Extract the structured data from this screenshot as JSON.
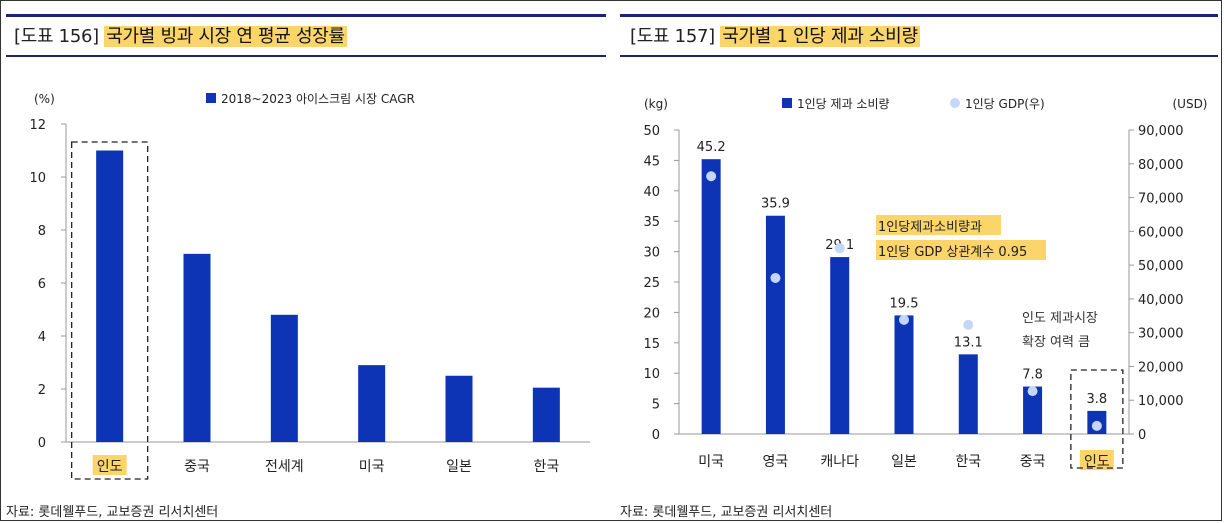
{
  "left_panel": {
    "fig_num": "[도표 156]",
    "fig_title": "국가별 빙과 시장 연 평균 성장률",
    "source": "자료: 롯데웰푸드, 교보증권 리서치센터"
  },
  "right_panel": {
    "fig_num": "[도표 157]",
    "fig_title": "국가별 1 인당 제과 소비량",
    "source": "자료: 롯데웰푸드, 교보증권 리서치센터"
  },
  "chart_data": [
    {
      "type": "bar",
      "unit_label": "(%)",
      "categories": [
        "인도",
        "중국",
        "전세계",
        "미국",
        "일본",
        "한국"
      ],
      "series": [
        {
          "name": "2018~2023 아이스크림 시장 CAGR",
          "values": [
            11.0,
            7.1,
            4.8,
            2.9,
            2.5,
            2.05
          ]
        }
      ],
      "ylim": [
        0,
        12
      ],
      "yticks": [
        0,
        2,
        4,
        6,
        8,
        10,
        12
      ],
      "y_tick_labels": [
        "0",
        "2",
        "4",
        "6",
        "8",
        "10",
        "12"
      ],
      "legend_position": "top-center",
      "highlight_category": "인도",
      "colors": {
        "bar": "#0d34b4",
        "highlight": "#fbd46a"
      }
    },
    {
      "type": "bar",
      "unit_label_left": "(kg)",
      "unit_label_right": "(USD)",
      "categories": [
        "미국",
        "영국",
        "캐나다",
        "일본",
        "한국",
        "중국",
        "인도"
      ],
      "series": [
        {
          "name": "1인당 제과 소비량",
          "axis": "left",
          "values": [
            45.2,
            35.9,
            29.1,
            19.5,
            13.1,
            7.8,
            3.8
          ],
          "data_labels": [
            "45.2",
            "35.9",
            "29.1",
            "19.5",
            "13.1",
            "7.8",
            "3.8"
          ]
        },
        {
          "name": "1인당 GDP(우)",
          "axis": "right",
          "type": "scatter",
          "values": [
            76300,
            46200,
            55000,
            33800,
            32300,
            12700,
            2400
          ]
        }
      ],
      "ylim_left": [
        0,
        50
      ],
      "yticks_left": [
        0,
        5,
        10,
        15,
        20,
        25,
        30,
        35,
        40,
        45,
        50
      ],
      "y_tick_labels_left": [
        "0",
        "5",
        "10",
        "15",
        "20",
        "25",
        "30",
        "35",
        "40",
        "45",
        "50"
      ],
      "ylim_right": [
        0,
        90000
      ],
      "yticks_right": [
        0,
        10000,
        20000,
        30000,
        40000,
        50000,
        60000,
        70000,
        80000,
        90000
      ],
      "y_tick_labels_right": [
        "0",
        "10,000",
        "20,000",
        "30,000",
        "40,000",
        "50,000",
        "60,000",
        "70,000",
        "80,000",
        "90,000"
      ],
      "legend_position": "top-center",
      "annotations": {
        "correlation": [
          "1인당제과소비량과",
          "1인당 GDP 상관계수 0.95"
        ],
        "india_note": [
          "인도 제과시장",
          "확장 여력 큼"
        ]
      },
      "highlight_category": "인도",
      "colors": {
        "bar": "#0d34b4",
        "dot": "#c5d6f7",
        "highlight": "#fbd46a"
      }
    }
  ]
}
